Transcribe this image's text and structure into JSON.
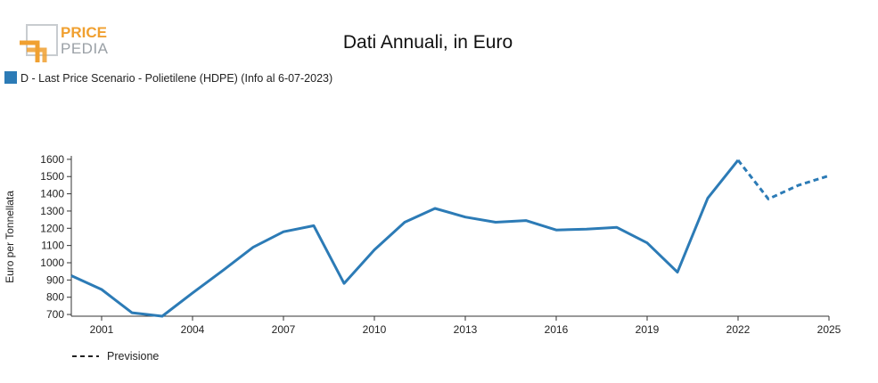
{
  "logo": {
    "line1": "PRICE",
    "line2": "PEDIA"
  },
  "colors": {
    "series": "#2c7bb6",
    "logo_orange": "#f0a030",
    "logo_gray": "#9aa0a6"
  },
  "chart_data": {
    "type": "line",
    "title": "Dati Annuali, in Euro",
    "xlabel": "",
    "ylabel": "Euro per Tonnellata",
    "ylim": [
      690,
      1620
    ],
    "xlim": [
      2000,
      2025
    ],
    "y_ticks": [
      700,
      800,
      900,
      1000,
      1100,
      1200,
      1300,
      1400,
      1500,
      1600
    ],
    "x_ticks": [
      2001,
      2004,
      2007,
      2010,
      2013,
      2016,
      2019,
      2022,
      2025
    ],
    "legend_position": "top-left",
    "grid": false,
    "series": [
      {
        "name": "D - Last Price Scenario - Polietilene (HDPE) (Info al 6-07-2023)",
        "style": "solid",
        "x": [
          2000,
          2001,
          2002,
          2003,
          2004,
          2005,
          2006,
          2007,
          2008,
          2009,
          2010,
          2011,
          2012,
          2013,
          2014,
          2015,
          2016,
          2017,
          2018,
          2019,
          2020,
          2021,
          2022
        ],
        "y": [
          925,
          845,
          710,
          690,
          825,
          955,
          1090,
          1180,
          1215,
          880,
          1075,
          1235,
          1315,
          1265,
          1235,
          1245,
          1190,
          1195,
          1205,
          1115,
          945,
          1375,
          1595
        ]
      },
      {
        "name": "Previsione",
        "style": "dashed",
        "x": [
          2022,
          2023,
          2024,
          2025
        ],
        "y": [
          1595,
          1370,
          1450,
          1505
        ]
      }
    ]
  }
}
